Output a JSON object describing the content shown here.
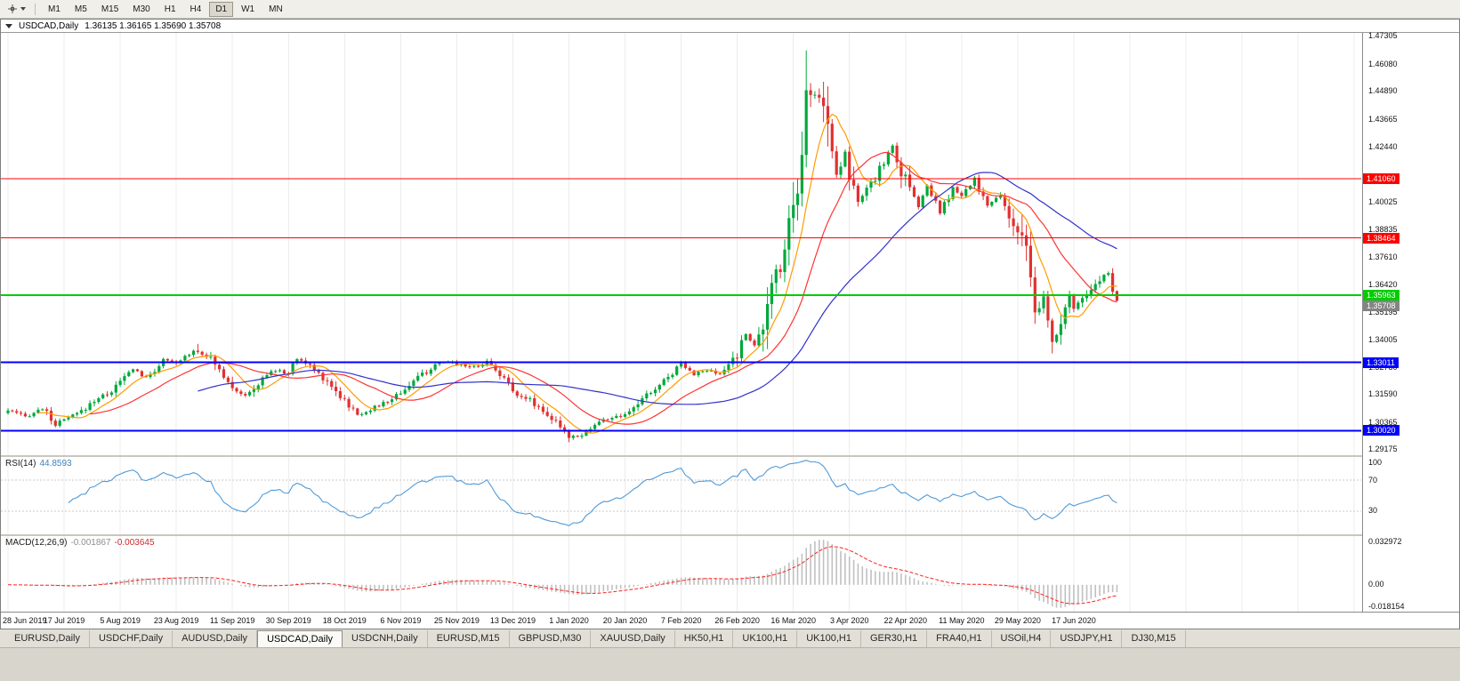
{
  "toolbar": {
    "timeframes": [
      "M1",
      "M5",
      "M15",
      "M30",
      "H1",
      "H4",
      "D1",
      "W1",
      "MN"
    ],
    "active_timeframe": "D1"
  },
  "window": {
    "symbol": "USDCAD,Daily",
    "ohlc_text": "1.36135 1.36165 1.35690 1.35708"
  },
  "chart_data": {
    "type": "candlestick",
    "symbol": "USDCAD",
    "timeframe": "Daily",
    "title": "USDCAD,Daily",
    "x_ticks": [
      "28 Jun 2019",
      "17 Jul 2019",
      "5 Aug 2019",
      "23 Aug 2019",
      "11 Sep 2019",
      "30 Sep 2019",
      "18 Oct 2019",
      "6 Nov 2019",
      "25 Nov 2019",
      "13 Dec 2019",
      "1 Jan 2020",
      "20 Jan 2020",
      "7 Feb 2020",
      "26 Feb 2020",
      "16 Mar 2020",
      "3 Apr 2020",
      "22 Apr 2020",
      "11 May 2020",
      "29 May 2020",
      "17 Jun 2020"
    ],
    "bars_per_tick": 13,
    "bar_count": 258,
    "last_bar": {
      "open": 1.36135,
      "high": 1.36165,
      "low": 1.3569,
      "close": 1.35708
    },
    "price_axis": {
      "max": 1.4745,
      "min": 1.2894,
      "labels": [
        "1.47305",
        "1.46080",
        "1.44890",
        "1.43665",
        "1.42440",
        "1.40025",
        "1.38835",
        "1.37610",
        "1.36420",
        "1.35195",
        "1.34005",
        "1.32780",
        "1.31590",
        "1.30365",
        "1.29175"
      ]
    },
    "hlines": [
      {
        "price": 1.4106,
        "label": "1.41060",
        "color": "#ff0000",
        "width": 1
      },
      {
        "price": 1.38464,
        "label": "1.38464",
        "color": "#ff0000",
        "width": 1
      },
      {
        "price": 1.35963,
        "label": "1.35963",
        "color": "#00cc00",
        "width": 2
      },
      {
        "price": 1.33011,
        "label": "1.33011",
        "color": "#0000ff",
        "width": 2
      },
      {
        "price": 1.3002,
        "label": "1.30020",
        "color": "#0000ff",
        "width": 2
      }
    ],
    "current_price": {
      "value": 1.35708,
      "label": "1.35708",
      "color": "#848484"
    },
    "candle_colors": {
      "up": "#00a83c",
      "down": "#e03131"
    },
    "ma": [
      {
        "period": 8,
        "color": "#ff9c00"
      },
      {
        "period": 20,
        "color": "#ff3333"
      },
      {
        "period": 45,
        "color": "#3232cd"
      }
    ],
    "keyframes": [
      [
        0,
        1.309
      ],
      [
        4,
        1.3062
      ],
      [
        8,
        1.31
      ],
      [
        11,
        1.3028
      ],
      [
        13,
        1.3048
      ],
      [
        17,
        1.3085
      ],
      [
        20,
        1.3135
      ],
      [
        24,
        1.3175
      ],
      [
        26,
        1.3215
      ],
      [
        29,
        1.3275
      ],
      [
        32,
        1.323
      ],
      [
        36,
        1.331
      ],
      [
        39,
        1.3295
      ],
      [
        43,
        1.3355
      ],
      [
        46,
        1.3335
      ],
      [
        49,
        1.327
      ],
      [
        52,
        1.32
      ],
      [
        55,
        1.315
      ],
      [
        58,
        1.3205
      ],
      [
        61,
        1.3265
      ],
      [
        65,
        1.3255
      ],
      [
        67,
        1.332
      ],
      [
        70,
        1.3285
      ],
      [
        74,
        1.322
      ],
      [
        78,
        1.3135
      ],
      [
        81,
        1.307
      ],
      [
        84,
        1.3095
      ],
      [
        88,
        1.313
      ],
      [
        91,
        1.317
      ],
      [
        95,
        1.3235
      ],
      [
        99,
        1.3285
      ],
      [
        102,
        1.3305
      ],
      [
        104,
        1.3295
      ],
      [
        108,
        1.328
      ],
      [
        111,
        1.3305
      ],
      [
        114,
        1.3255
      ],
      [
        117,
        1.3175
      ],
      [
        121,
        1.3135
      ],
      [
        125,
        1.3075
      ],
      [
        128,
        1.301
      ],
      [
        130,
        1.2975
      ],
      [
        133,
        1.2985
      ],
      [
        137,
        1.304
      ],
      [
        140,
        1.306
      ],
      [
        143,
        1.3065
      ],
      [
        147,
        1.314
      ],
      [
        151,
        1.32
      ],
      [
        154,
        1.326
      ],
      [
        156,
        1.33
      ],
      [
        159,
        1.325
      ],
      [
        162,
        1.3265
      ],
      [
        165,
        1.3245
      ],
      [
        169,
        1.334
      ],
      [
        171,
        1.3425
      ],
      [
        173,
        1.338
      ],
      [
        175,
        1.342
      ],
      [
        177,
        1.365
      ],
      [
        179,
        1.374
      ],
      [
        181,
        1.392
      ],
      [
        182,
        1.401
      ],
      [
        184,
        1.428
      ],
      [
        185,
        1.45
      ],
      [
        186,
        1.446
      ],
      [
        188,
        1.448
      ],
      [
        190,
        1.434
      ],
      [
        192,
        1.412
      ],
      [
        194,
        1.423
      ],
      [
        195,
        1.413
      ],
      [
        197,
        1.401
      ],
      [
        200,
        1.407
      ],
      [
        203,
        1.419
      ],
      [
        205,
        1.4245
      ],
      [
        208,
        1.409
      ],
      [
        211,
        1.3985
      ],
      [
        213,
        1.4075
      ],
      [
        216,
        1.3955
      ],
      [
        219,
        1.4065
      ],
      [
        221,
        1.4025
      ],
      [
        224,
        1.4105
      ],
      [
        227,
        1.3985
      ],
      [
        230,
        1.4035
      ],
      [
        233,
        1.3905
      ],
      [
        234,
        1.388
      ],
      [
        236,
        1.3755
      ],
      [
        238,
        1.351
      ],
      [
        240,
        1.3575
      ],
      [
        242,
        1.339
      ],
      [
        244,
        1.345
      ],
      [
        246,
        1.359
      ],
      [
        247,
        1.3545
      ],
      [
        249,
        1.357
      ],
      [
        251,
        1.3615
      ],
      [
        253,
        1.366
      ],
      [
        255,
        1.3705
      ],
      [
        256,
        1.3613
      ],
      [
        257,
        1.35708
      ]
    ],
    "extremes": [
      {
        "i": 44,
        "high": 1.3382
      },
      {
        "i": 130,
        "low": 1.2951
      },
      {
        "i": 185,
        "high": 1.4668
      },
      {
        "i": 242,
        "low": 1.334
      }
    ],
    "rsi": {
      "name": "RSI(14)",
      "value": "44.8593",
      "period": 14,
      "color": "#4f9ad8",
      "levels": [
        70,
        30
      ],
      "axis_labels": [
        {
          "value": 100,
          "text": "100"
        },
        {
          "value": 70,
          "text": "70"
        },
        {
          "value": 30,
          "text": "30"
        }
      ]
    },
    "macd": {
      "name": "MACD(12,26,9)",
      "value_main": "-0.001867",
      "value_signal": "-0.003645",
      "fast": 12,
      "slow": 26,
      "signal": 9,
      "hist_color": "#c0c0c0",
      "signal_color": "#ff2020",
      "axis_min": -0.018154,
      "axis_max": 0.032972,
      "axis_labels": [
        {
          "value": 0.032972,
          "text": "0.032972"
        },
        {
          "value": 0,
          "text": "0.00"
        },
        {
          "value": -0.018154,
          "text": "-0.018154"
        }
      ]
    }
  },
  "tabs": {
    "items": [
      "EURUSD,Daily",
      "USDCHF,Daily",
      "AUDUSD,Daily",
      "USDCAD,Daily",
      "USDCNH,Daily",
      "EURUSD,M15",
      "GBPUSD,M30",
      "XAUUSD,Daily",
      "HK50,H1",
      "UK100,H1",
      "UK100,H1",
      "GER30,H1",
      "FRA40,H1",
      "USOil,H4",
      "USDJPY,H1",
      "DJ30,M15"
    ],
    "active": "USDCAD,Daily"
  }
}
